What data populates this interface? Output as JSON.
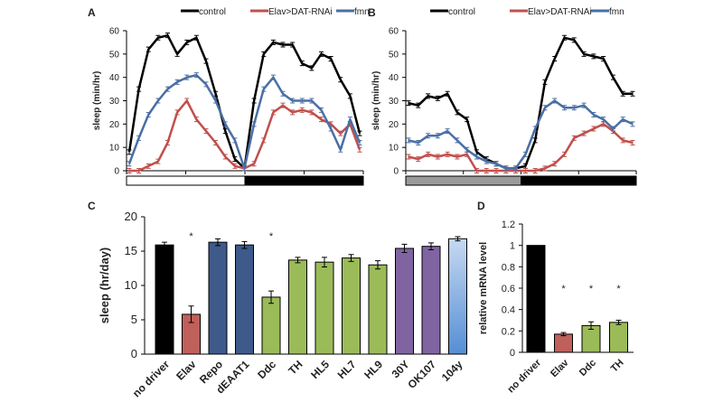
{
  "chart_data": [
    {
      "panel": "A",
      "type": "line",
      "ylabel": "sleep (min/hr)",
      "ylim": [
        0,
        60
      ],
      "yticks": [
        0,
        10,
        20,
        30,
        40,
        50,
        60
      ],
      "legend": [
        "control",
        "Elav>DAT-RNAi",
        "fmn"
      ],
      "legend_position": "top",
      "light_bar": [
        "light",
        "dark"
      ],
      "series": [
        {
          "name": "control",
          "color": "#000000",
          "values": [
            8,
            35,
            52,
            57,
            58,
            50,
            55,
            57,
            47,
            33,
            17,
            5,
            1,
            30,
            50,
            55,
            54,
            54,
            46,
            44,
            50,
            48,
            39,
            32,
            16
          ]
        },
        {
          "name": "Elav>DAT-RNAi",
          "color": "#c0504d",
          "values": [
            0,
            0,
            2,
            4,
            12,
            25,
            30,
            22,
            17,
            12,
            6,
            2,
            1,
            3,
            13,
            25,
            28,
            25,
            26,
            25,
            22,
            20,
            16,
            20,
            9
          ]
        },
        {
          "name": "fmn",
          "color": "#4a6fa5",
          "values": [
            3,
            14,
            24,
            30,
            35,
            38,
            40,
            41,
            37,
            30,
            20,
            13,
            1,
            20,
            35,
            40,
            33,
            30,
            30,
            30,
            26,
            18,
            9,
            22,
            12
          ]
        }
      ]
    },
    {
      "panel": "B",
      "type": "line",
      "ylabel": "sleep (min/hr)",
      "ylim": [
        0,
        60
      ],
      "yticks": [
        0,
        10,
        20,
        30,
        40,
        50,
        60
      ],
      "legend": [
        "control",
        "Elav>DAT-RNAi",
        "fmn"
      ],
      "legend_position": "top",
      "light_bar": [
        "grey",
        "dark"
      ],
      "series": [
        {
          "name": "control",
          "color": "#000000",
          "values": [
            29,
            28,
            32,
            31,
            33,
            25,
            22,
            8,
            5,
            3,
            1,
            1,
            2,
            13,
            38,
            48,
            57,
            56,
            50,
            49,
            48,
            40,
            33,
            33
          ]
        },
        {
          "name": "Elav>DAT-RNAi",
          "color": "#c0504d",
          "values": [
            6,
            5,
            7,
            6,
            7,
            6,
            7,
            0,
            0,
            0,
            0,
            0,
            0,
            0,
            1,
            3,
            7,
            14,
            16,
            18,
            20,
            17,
            13,
            12
          ]
        },
        {
          "name": "fmn",
          "color": "#4a6fa5",
          "values": [
            13,
            12,
            15,
            15,
            17,
            13,
            9,
            6,
            4,
            3,
            1,
            1,
            7,
            18,
            27,
            30,
            27,
            27,
            28,
            24,
            22,
            18,
            22,
            20
          ]
        }
      ]
    },
    {
      "panel": "C",
      "type": "bar",
      "ylabel": "sleep (hr/day)",
      "ylim": [
        0,
        20
      ],
      "yticks": [
        0,
        5,
        10,
        15,
        20
      ],
      "categories": [
        "no driver",
        "Elav",
        "Repo",
        "dEAAT1",
        "Ddc",
        "TH",
        "HL5",
        "HL7",
        "HL9",
        "30Y",
        "OK107",
        "104y"
      ],
      "values": [
        15.9,
        5.8,
        16.3,
        15.9,
        8.3,
        13.7,
        13.4,
        14.0,
        13.0,
        15.4,
        15.7,
        16.8
      ],
      "errors": [
        0.4,
        1.2,
        0.5,
        0.5,
        0.9,
        0.4,
        0.7,
        0.5,
        0.6,
        0.6,
        0.5,
        0.3
      ],
      "colors": [
        "#000000",
        "#c0605a",
        "#3d5a8a",
        "#3d5a8a",
        "#9bbb59",
        "#9bbb59",
        "#9bbb59",
        "#9bbb59",
        "#9bbb59",
        "#8064a2",
        "#8064a2",
        "#8eb4e3"
      ],
      "significance": [
        "",
        "*",
        "",
        "",
        "*",
        "",
        "",
        "",
        "",
        "",
        "",
        ""
      ]
    },
    {
      "panel": "D",
      "type": "bar",
      "ylabel": "relative mRNA level",
      "ylim": [
        0,
        1.2
      ],
      "yticks": [
        "0",
        "0.2",
        "0.4",
        "0.6",
        "0.8",
        "1",
        "1.2"
      ],
      "categories": [
        "no driver",
        "Elav",
        "Ddc",
        "TH"
      ],
      "values": [
        1.0,
        0.17,
        0.25,
        0.28
      ],
      "errors": [
        0,
        0.015,
        0.035,
        0.02
      ],
      "colors": [
        "#000000",
        "#c0605a",
        "#9bbb59",
        "#9bbb59"
      ],
      "significance": [
        "",
        "*",
        "*",
        "*"
      ]
    }
  ]
}
